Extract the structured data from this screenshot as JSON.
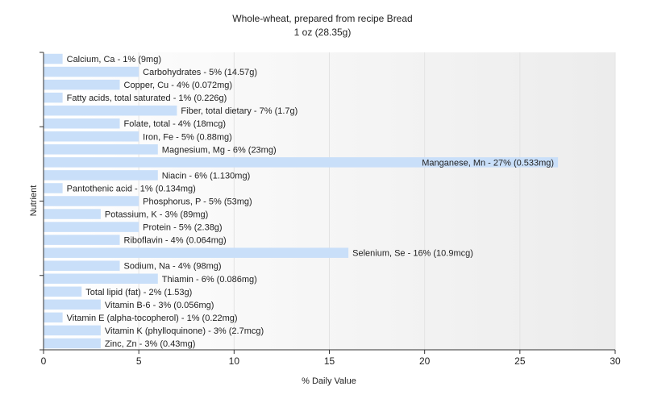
{
  "chart_data": {
    "type": "bar",
    "orientation": "horizontal",
    "title": "Whole-wheat, prepared from recipe Bread",
    "subtitle": "1 oz (28.35g)",
    "xlabel": "% Daily Value",
    "ylabel": "Nutrient",
    "xlim": [
      0,
      30
    ],
    "xticks": [
      0,
      5,
      10,
      15,
      20,
      25,
      30
    ],
    "grid": true,
    "bar_color": "#c9dff9",
    "categories": [
      "Calcium, Ca",
      "Carbohydrates",
      "Copper, Cu",
      "Fatty acids, total saturated",
      "Fiber, total dietary",
      "Folate, total",
      "Iron, Fe",
      "Magnesium, Mg",
      "Manganese, Mn",
      "Niacin",
      "Pantothenic acid",
      "Phosphorus, P",
      "Potassium, K",
      "Protein",
      "Riboflavin",
      "Selenium, Se",
      "Sodium, Na",
      "Thiamin",
      "Total lipid (fat)",
      "Vitamin B-6",
      "Vitamin E (alpha-tocopherol)",
      "Vitamin K (phylloquinone)",
      "Zinc, Zn"
    ],
    "values": [
      1,
      5,
      4,
      1,
      7,
      4,
      5,
      6,
      27,
      6,
      1,
      5,
      3,
      5,
      4,
      16,
      4,
      6,
      2,
      3,
      1,
      3,
      3
    ],
    "labels": [
      "Calcium, Ca - 1% (9mg)",
      "Carbohydrates - 5% (14.57g)",
      "Copper, Cu - 4% (0.072mg)",
      "Fatty acids, total saturated - 1% (0.226g)",
      "Fiber, total dietary - 7% (1.7g)",
      "Folate, total - 4% (18mcg)",
      "Iron, Fe - 5% (0.88mg)",
      "Magnesium, Mg - 6% (23mg)",
      "Manganese, Mn - 27% (0.533mg)",
      "Niacin - 6% (1.130mg)",
      "Pantothenic acid - 1% (0.134mg)",
      "Phosphorus, P - 5% (53mg)",
      "Potassium, K - 3% (89mg)",
      "Protein - 5% (2.38g)",
      "Riboflavin - 4% (0.064mg)",
      "Selenium, Se - 16% (10.9mcg)",
      "Sodium, Na - 4% (98mg)",
      "Thiamin - 6% (0.086mg)",
      "Total lipid (fat) - 2% (1.53g)",
      "Vitamin B-6 - 3% (0.056mg)",
      "Vitamin E (alpha-tocopherol) - 1% (0.22mg)",
      "Vitamin K (phylloquinone) - 3% (2.7mcg)",
      "Zinc, Zn - 3% (0.43mg)"
    ]
  }
}
